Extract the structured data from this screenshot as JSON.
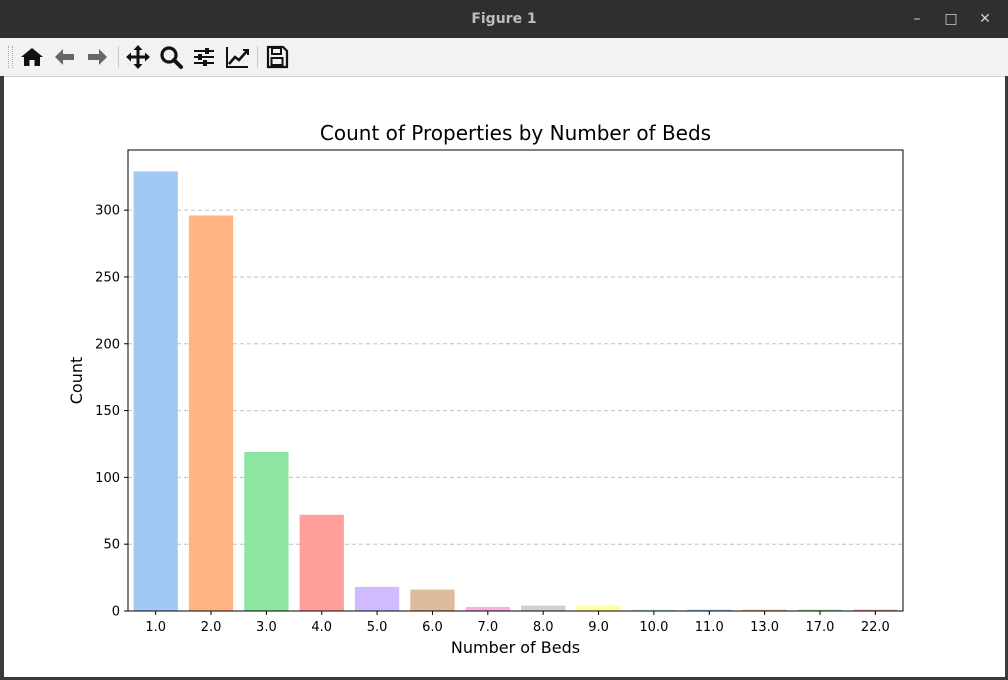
{
  "window": {
    "title": "Figure 1",
    "minimize_icon": "minimize-icon",
    "maximize_icon": "maximize-icon",
    "close_icon": "close-icon"
  },
  "toolbar": {
    "buttons": [
      {
        "name": "home",
        "icon": "home-icon"
      },
      {
        "name": "back",
        "icon": "arrow-left-icon"
      },
      {
        "name": "forward",
        "icon": "arrow-right-icon"
      },
      {
        "name": "pan",
        "icon": "move-icon"
      },
      {
        "name": "zoom",
        "icon": "magnifier-icon"
      },
      {
        "name": "configure-subplots",
        "icon": "sliders-icon"
      },
      {
        "name": "edit-axis",
        "icon": "line-chart-icon"
      },
      {
        "name": "save",
        "icon": "floppy-disk-icon"
      }
    ]
  },
  "chart_data": {
    "type": "bar",
    "title": "Count of Properties by Number of Beds",
    "xlabel": "Number of Beds",
    "ylabel": "Count",
    "categories": [
      "1.0",
      "2.0",
      "3.0",
      "4.0",
      "5.0",
      "6.0",
      "7.0",
      "8.0",
      "9.0",
      "10.0",
      "11.0",
      "13.0",
      "17.0",
      "22.0"
    ],
    "values": [
      329,
      296,
      119,
      72,
      18,
      16,
      3,
      4,
      4,
      1,
      1,
      1,
      1,
      1
    ],
    "colors": [
      "#a1c9f4",
      "#ffb482",
      "#8de5a1",
      "#ff9f9b",
      "#d0bbff",
      "#debb9b",
      "#fab0e4",
      "#cfcfcf",
      "#fffea3",
      "#b9f2f0",
      "#a1c9f4",
      "#ffb482",
      "#8de5a1",
      "#ff9f9b"
    ],
    "ylim": [
      0,
      345
    ],
    "yticks": [
      0,
      50,
      100,
      150,
      200,
      250,
      300
    ],
    "grid": "y-dashed",
    "legend": "none"
  }
}
